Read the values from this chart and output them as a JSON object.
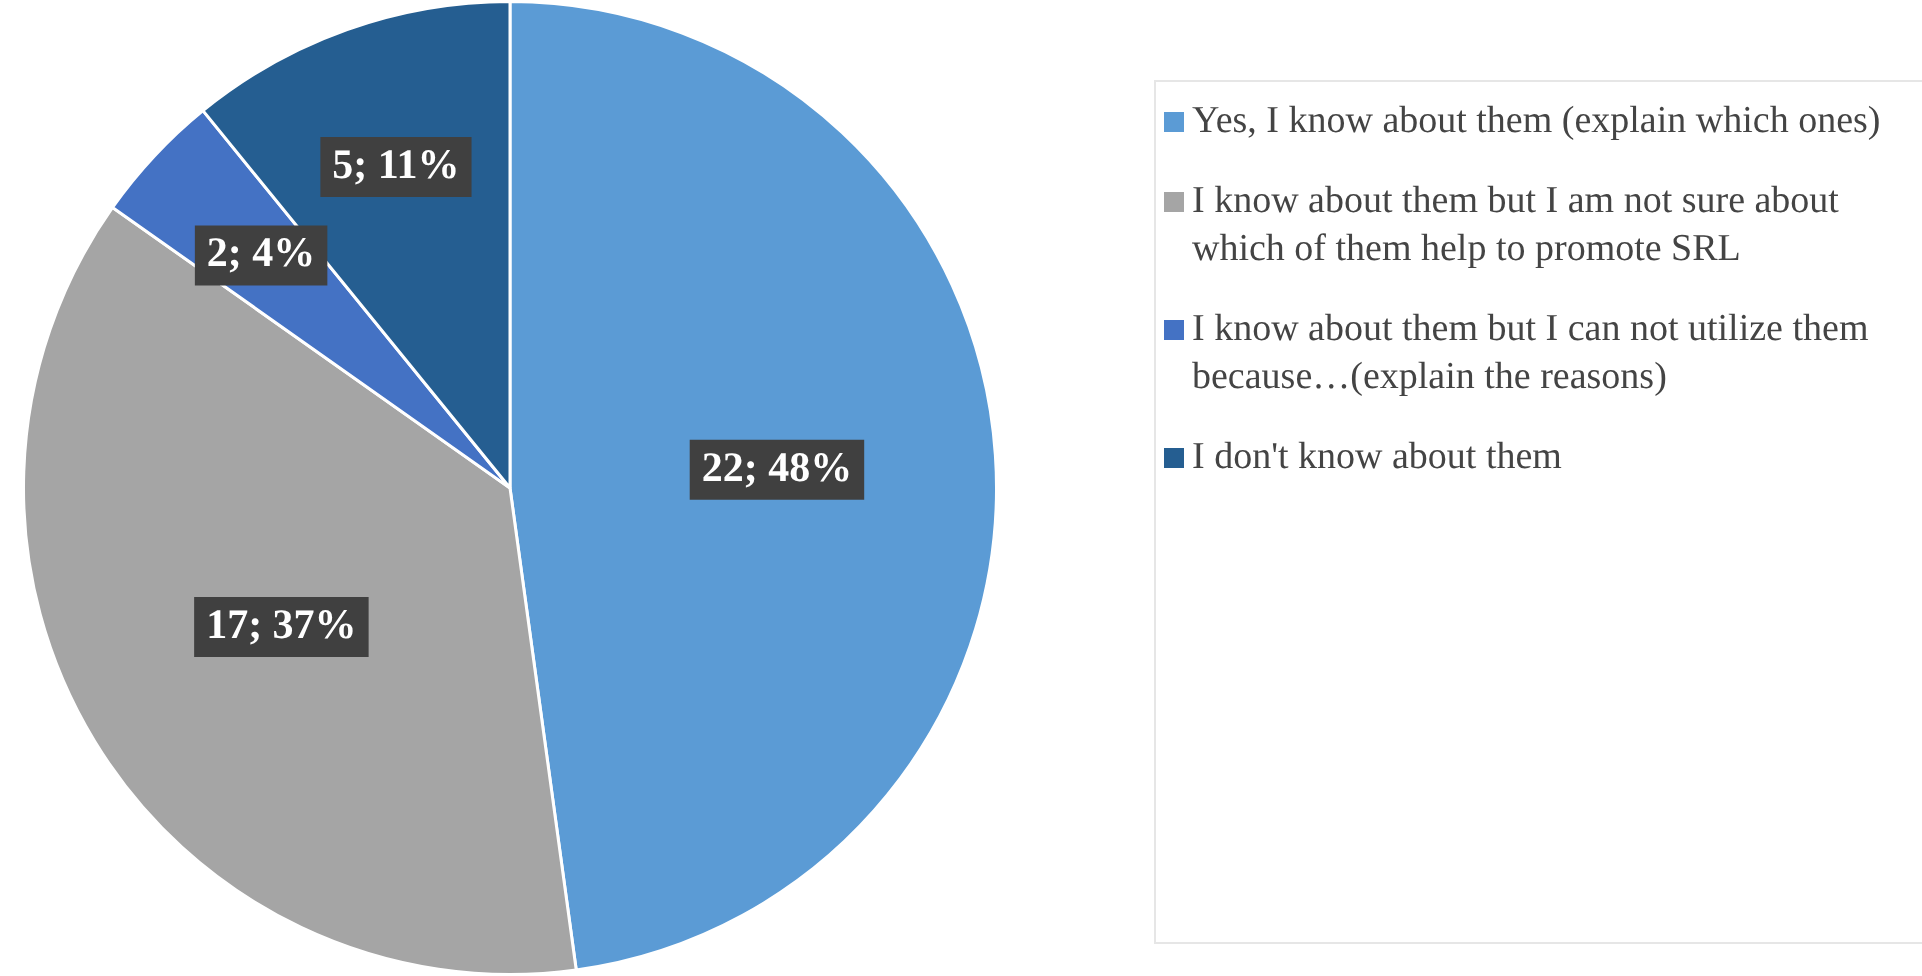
{
  "chart_data": {
    "type": "pie",
    "categories": [
      "Yes, I know about them (explain which ones)",
      "I know about them but I am not sure about which of them help to promote SRL",
      "I know about them but I can not utilize them because…(explain the reasons)",
      "I don't know about them"
    ],
    "values": [
      22,
      17,
      2,
      5
    ],
    "colors": [
      "#5b9bd5",
      "#a5a5a5",
      "#4472c4",
      "#255e91"
    ],
    "value_labels": [
      "22; 48%",
      "17; 37%",
      "2; 4%",
      "5; 11%"
    ],
    "legend": "right"
  }
}
